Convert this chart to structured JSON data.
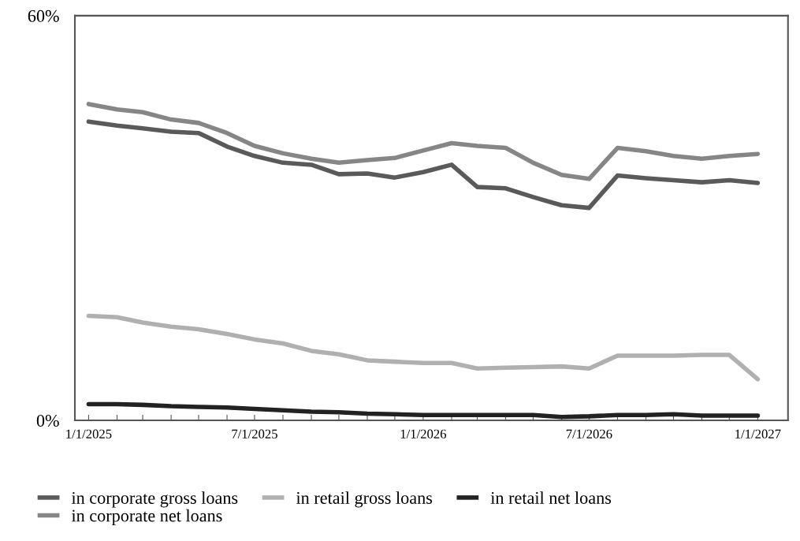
{
  "chart_data": {
    "type": "line",
    "x": [
      "2025-01",
      "2025-02",
      "2025-03",
      "2025-04",
      "2025-05",
      "2025-06",
      "2025-07",
      "2025-08",
      "2025-09",
      "2025-10",
      "2025-11",
      "2025-12",
      "2026-01",
      "2026-02",
      "2026-03",
      "2026-04",
      "2026-05",
      "2026-06",
      "2026-07",
      "2026-08",
      "2026-09",
      "2026-10",
      "2026-11",
      "2026-12",
      "2027-01"
    ],
    "series": [
      {
        "name": "in corporate gross loans",
        "color": "#5a5a5a",
        "values": [
          44.3,
          43.7,
          43.3,
          42.8,
          42.6,
          40.6,
          39.2,
          38.2,
          37.9,
          36.5,
          36.6,
          36.0,
          36.8,
          37.9,
          34.6,
          34.4,
          33.1,
          31.9,
          31.5,
          36.3,
          35.9,
          35.6,
          35.3,
          35.6,
          35.2
        ]
      },
      {
        "name": "in corporate net loans",
        "color": "#868686",
        "values": [
          46.9,
          46.1,
          45.7,
          44.6,
          44.1,
          42.6,
          40.7,
          39.6,
          38.8,
          38.2,
          38.6,
          38.9,
          40.0,
          41.1,
          40.7,
          40.4,
          38.2,
          36.4,
          35.8,
          40.4,
          39.9,
          39.2,
          38.8,
          39.2,
          39.5
        ]
      },
      {
        "name": "in retail gross loans",
        "color": "#b0b0b0",
        "values": [
          15.5,
          15.3,
          14.5,
          13.9,
          13.5,
          12.8,
          12.0,
          11.4,
          10.3,
          9.8,
          8.9,
          8.7,
          8.5,
          8.5,
          7.7,
          7.8,
          7.9,
          8.0,
          7.7,
          9.6,
          9.6,
          9.6,
          9.7,
          9.7,
          6.1
        ]
      },
      {
        "name": "in retail net loans",
        "color": "#222222",
        "values": [
          2.4,
          2.4,
          2.3,
          2.1,
          2.0,
          1.9,
          1.7,
          1.5,
          1.3,
          1.2,
          1.0,
          0.9,
          0.8,
          0.8,
          0.8,
          0.8,
          0.8,
          0.5,
          0.6,
          0.8,
          0.8,
          0.9,
          0.7,
          0.7,
          0.7
        ]
      }
    ],
    "xlim": [
      "2024-12-17",
      "2027-02-03"
    ],
    "xticks": [
      {
        "value": "2025-01",
        "label": "1/1/2025"
      },
      {
        "value": "2025-02",
        "label": null
      },
      {
        "value": "2025-03",
        "label": null
      },
      {
        "value": "2025-04",
        "label": null
      },
      {
        "value": "2025-05",
        "label": null
      },
      {
        "value": "2025-06",
        "label": null
      },
      {
        "value": "2025-07",
        "label": "7/1/2025"
      },
      {
        "value": "2025-08",
        "label": null
      },
      {
        "value": "2025-09",
        "label": null
      },
      {
        "value": "2025-10",
        "label": null
      },
      {
        "value": "2025-11",
        "label": null
      },
      {
        "value": "2025-12",
        "label": null
      },
      {
        "value": "2026-01",
        "label": "1/1/2026"
      },
      {
        "value": "2026-02",
        "label": null
      },
      {
        "value": "2026-03",
        "label": null
      },
      {
        "value": "2026-04",
        "label": null
      },
      {
        "value": "2026-05",
        "label": null
      },
      {
        "value": "2026-06",
        "label": null
      },
      {
        "value": "2026-07",
        "label": "7/1/2026"
      },
      {
        "value": "2026-08",
        "label": null
      },
      {
        "value": "2026-09",
        "label": null
      },
      {
        "value": "2026-10",
        "label": null
      },
      {
        "value": "2026-11",
        "label": null
      },
      {
        "value": "2026-12",
        "label": null
      },
      {
        "value": "2027-01",
        "label": "1/1/2027"
      }
    ],
    "ylim": [
      0,
      60
    ],
    "yticks": [
      {
        "value": 0,
        "label": "0%"
      },
      {
        "value": 60,
        "label": "60%"
      }
    ],
    "grid": false,
    "legend": "bottom",
    "marker": "none",
    "line_style": "solid"
  }
}
